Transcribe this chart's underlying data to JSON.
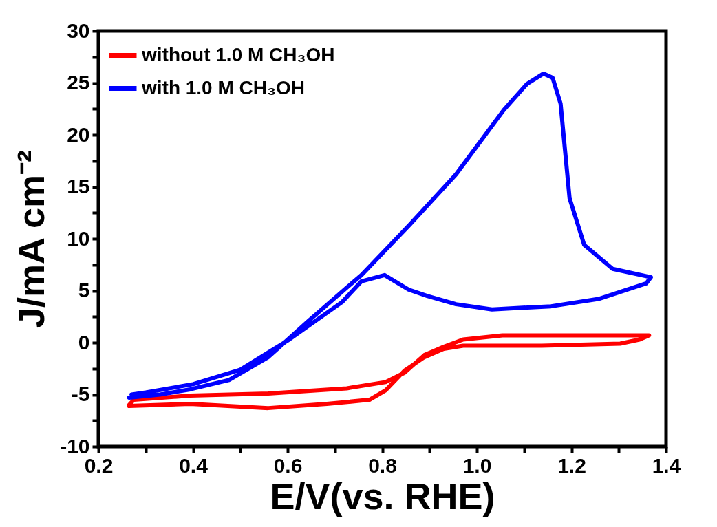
{
  "chart_data": {
    "type": "line",
    "xlabel": "E/V(vs. RHE)",
    "ylabel": "J/mA cm⁻²",
    "xlim": [
      0.2,
      1.4
    ],
    "ylim": [
      -10,
      30
    ],
    "xticks": [
      0.2,
      {
        "value": 0.3,
        "label": null
      },
      0.4,
      {
        "value": 0.5,
        "label": null
      },
      0.6,
      {
        "value": 0.7,
        "label": null
      },
      0.8,
      {
        "value": 0.9,
        "label": null
      },
      {
        "value": 1.0,
        "label": "1.0"
      },
      {
        "value": 1.1,
        "label": null
      },
      1.2,
      {
        "value": 1.3,
        "label": null
      },
      1.4
    ],
    "yticks": [
      -10,
      {
        "value": -7.5,
        "label": null
      },
      -5,
      {
        "value": -2.5,
        "label": null
      },
      0,
      {
        "value": 2.5,
        "label": null
      },
      5,
      {
        "value": 7.5,
        "label": null
      },
      10,
      {
        "value": 12.5,
        "label": null
      },
      15,
      {
        "value": 17.5,
        "label": null
      },
      20,
      {
        "value": 22.5,
        "label": null
      },
      25,
      {
        "value": 27.5,
        "label": null
      },
      30
    ],
    "legend": "top left",
    "grid": false,
    "series": [
      {
        "name": "without 1.0 M CH₃OH",
        "color": "#ff0000",
        "x": [
          0.265,
          0.394,
          0.559,
          0.683,
          0.773,
          0.807,
          0.847,
          0.889,
          0.93,
          0.971,
          1.137,
          1.303,
          1.344,
          1.364,
          1.3,
          1.054,
          0.971,
          0.93,
          0.889,
          0.847,
          0.807,
          0.725,
          0.559,
          0.394,
          0.275,
          0.265
        ],
        "values": [
          -6.1,
          -5.9,
          -6.3,
          -5.9,
          -5.5,
          -4.6,
          -2.7,
          -1.4,
          -0.6,
          -0.3,
          -0.3,
          -0.1,
          0.3,
          0.7,
          0.7,
          0.7,
          0.3,
          -0.4,
          -1.2,
          -2.9,
          -3.8,
          -4.4,
          -4.9,
          -5.1,
          -5.5,
          -6.0
        ]
      },
      {
        "name": "with 1.0 M CH₃OH",
        "color": "#0000ff",
        "x": [
          0.265,
          0.33,
          0.394,
          0.476,
          0.559,
          0.642,
          0.725,
          0.756,
          0.857,
          0.956,
          1.057,
          1.106,
          1.141,
          1.16,
          1.177,
          1.196,
          1.227,
          1.287,
          1.368,
          1.358,
          1.257,
          1.157,
          1.032,
          0.956,
          0.895,
          0.856,
          0.805,
          0.756,
          0.715,
          0.6,
          0.5,
          0.4,
          0.3,
          0.27
        ],
        "values": [
          -5.3,
          -5.0,
          -4.5,
          -3.6,
          -1.4,
          2.0,
          5.3,
          6.5,
          11.3,
          16.2,
          22.4,
          24.9,
          25.9,
          25.5,
          23.0,
          13.9,
          9.4,
          7.1,
          6.3,
          5.7,
          4.2,
          3.5,
          3.2,
          3.7,
          4.5,
          5.1,
          6.5,
          5.9,
          3.9,
          0.2,
          -2.6,
          -4.0,
          -4.8,
          -5.0
        ]
      }
    ]
  }
}
